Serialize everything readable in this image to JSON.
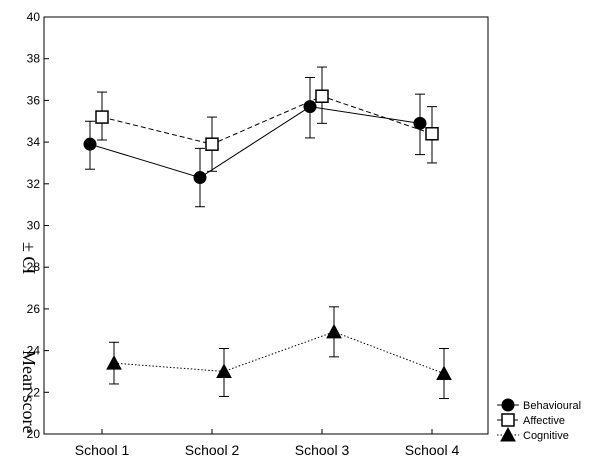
{
  "chart_data": {
    "type": "line",
    "title": "",
    "xlabel": "",
    "ylabel_parts": [
      "Mean score",
      "± CI"
    ],
    "ylim": [
      20,
      40
    ],
    "yticks": [
      20,
      22,
      24,
      26,
      28,
      30,
      32,
      34,
      36,
      38,
      40
    ],
    "categories": [
      "School 1",
      "School 2",
      "School 3",
      "School 4"
    ],
    "grid": false,
    "legend_position": "bottom-right",
    "series": [
      {
        "name": "Behavioural",
        "marker": "filled-circle",
        "line_style": "solid",
        "values": [
          33.9,
          32.3,
          35.7,
          34.9
        ],
        "ci_low": [
          32.7,
          30.9,
          34.2,
          33.4
        ],
        "ci_high": [
          35.0,
          33.7,
          37.1,
          36.3
        ]
      },
      {
        "name": "Affective",
        "marker": "open-square",
        "line_style": "dashed",
        "values": [
          35.2,
          33.9,
          36.2,
          34.4
        ],
        "ci_low": [
          34.1,
          32.6,
          34.9,
          33.0
        ],
        "ci_high": [
          36.4,
          35.2,
          37.6,
          35.7
        ]
      },
      {
        "name": "Cognitive",
        "marker": "filled-triangle",
        "line_style": "dotted",
        "values": [
          23.4,
          23.0,
          24.9,
          22.9
        ],
        "ci_low": [
          22.4,
          21.8,
          23.7,
          21.7
        ],
        "ci_high": [
          24.4,
          24.1,
          26.1,
          24.1
        ]
      }
    ]
  }
}
